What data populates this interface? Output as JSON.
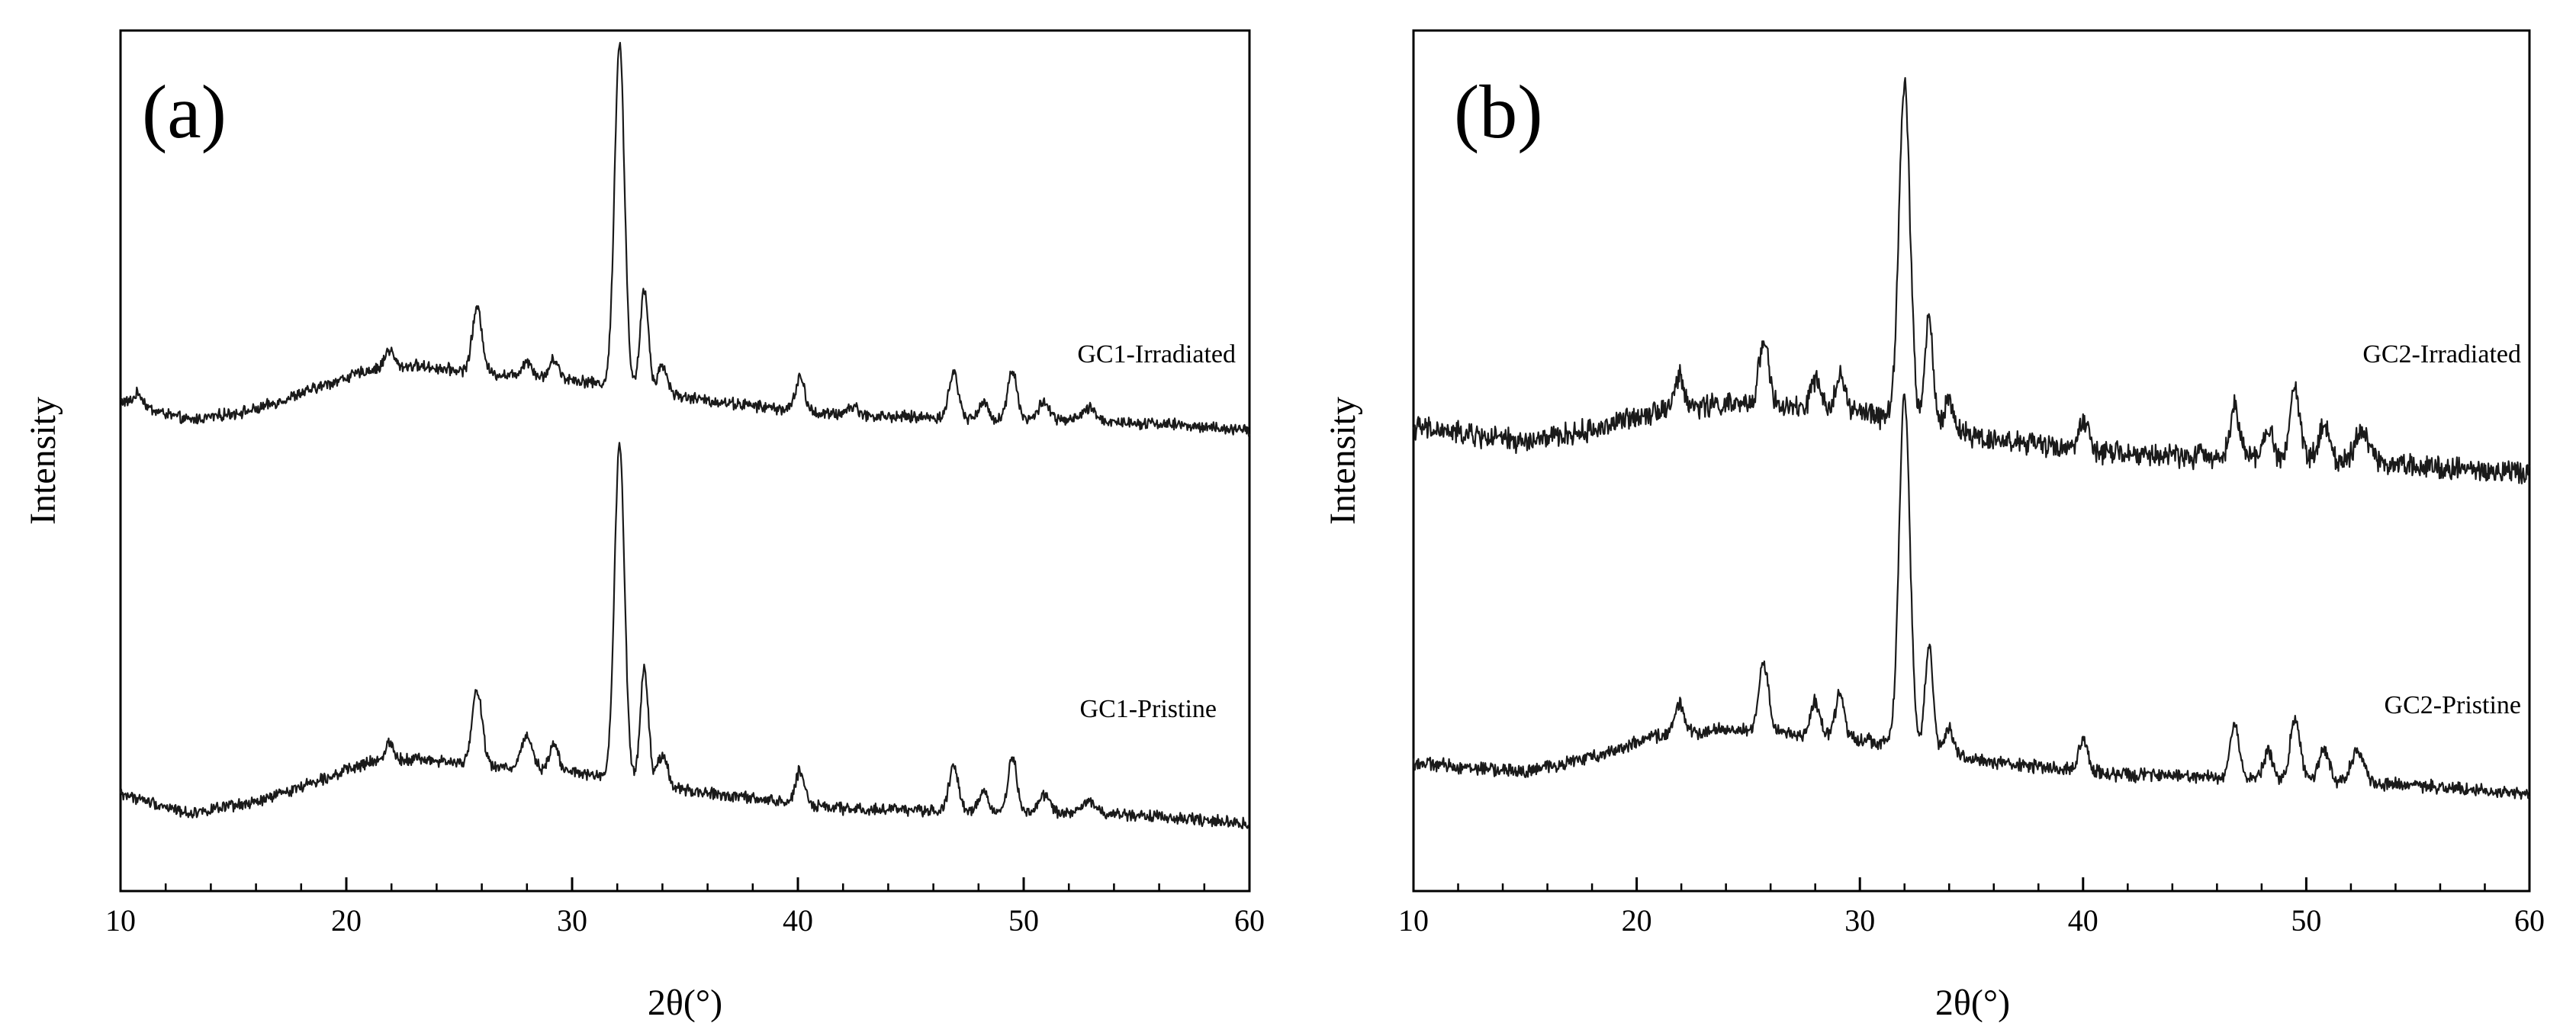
{
  "chart_data": [
    {
      "type": "line",
      "panel_label": "(a)",
      "xlabel": "2θ(°)",
      "ylabel": "Intensity",
      "xlim": [
        10,
        60
      ],
      "xticks": [
        10,
        20,
        30,
        40,
        50,
        60
      ],
      "xtick_labels": [
        "10",
        "20",
        "30",
        "40",
        "50",
        "60"
      ],
      "yticks": "none",
      "series": [
        {
          "name": "GC1-Irradiated",
          "noise": 0.03,
          "offset": 1.55,
          "baseline": [
            [
              10,
              0.2
            ],
            [
              13,
              0.07
            ],
            [
              16,
              0.14
            ],
            [
              19,
              0.3
            ],
            [
              21,
              0.4
            ],
            [
              23,
              0.43
            ],
            [
              26,
              0.38
            ],
            [
              30,
              0.34
            ],
            [
              36,
              0.2
            ],
            [
              42,
              0.1
            ],
            [
              50,
              0.08
            ],
            [
              56,
              0.05
            ],
            [
              60,
              0.0
            ]
          ],
          "peaks": [
            [
              10.8,
              0.08,
              0.2
            ],
            [
              21.9,
              0.12,
              0.2
            ],
            [
              25.8,
              0.42,
              0.22
            ],
            [
              28.0,
              0.1,
              0.22
            ],
            [
              29.2,
              0.12,
              0.2
            ],
            [
              32.1,
              2.25,
              0.22
            ],
            [
              33.2,
              0.66,
              0.18
            ],
            [
              34.0,
              0.18,
              0.22
            ],
            [
              40.1,
              0.22,
              0.2
            ],
            [
              42.4,
              0.06,
              0.3
            ],
            [
              46.9,
              0.3,
              0.2
            ],
            [
              48.2,
              0.1,
              0.2
            ],
            [
              49.5,
              0.32,
              0.2
            ],
            [
              50.9,
              0.12,
              0.22
            ],
            [
              52.9,
              0.08,
              0.3
            ]
          ]
        },
        {
          "name": "GC1-Pristine",
          "noise": 0.03,
          "offset": 0.0,
          "baseline": [
            [
              10,
              0.2
            ],
            [
              13,
              0.07
            ],
            [
              16,
              0.14
            ],
            [
              19,
              0.3
            ],
            [
              21,
              0.4
            ],
            [
              23,
              0.43
            ],
            [
              26,
              0.38
            ],
            [
              30,
              0.34
            ],
            [
              36,
              0.2
            ],
            [
              42,
              0.1
            ],
            [
              50,
              0.08
            ],
            [
              56,
              0.05
            ],
            [
              60,
              0.0
            ]
          ],
          "peaks": [
            [
              21.9,
              0.12,
              0.2
            ],
            [
              25.8,
              0.5,
              0.22
            ],
            [
              28.0,
              0.22,
              0.25
            ],
            [
              29.2,
              0.18,
              0.2
            ],
            [
              32.1,
              2.2,
              0.22
            ],
            [
              33.2,
              0.75,
              0.18
            ],
            [
              34.0,
              0.2,
              0.22
            ],
            [
              40.1,
              0.22,
              0.2
            ],
            [
              46.9,
              0.3,
              0.2
            ],
            [
              48.2,
              0.12,
              0.2
            ],
            [
              49.5,
              0.35,
              0.2
            ],
            [
              50.9,
              0.12,
              0.22
            ],
            [
              52.9,
              0.08,
              0.3
            ]
          ]
        }
      ]
    },
    {
      "type": "line",
      "panel_label": "(b)",
      "xlabel": "2θ(°)",
      "ylabel": "Intensity",
      "xlim": [
        10,
        60
      ],
      "xticks": [
        10,
        20,
        30,
        40,
        50,
        60
      ],
      "xtick_labels": [
        "10",
        "20",
        "30",
        "40",
        "50",
        "60"
      ],
      "yticks": "none",
      "series": [
        {
          "name": "GC2-Irradiated",
          "noise": 0.06,
          "offset": 1.55,
          "baseline": [
            [
              10,
              0.3
            ],
            [
              15,
              0.2
            ],
            [
              18,
              0.28
            ],
            [
              21,
              0.42
            ],
            [
              24,
              0.45
            ],
            [
              30,
              0.4
            ],
            [
              36,
              0.22
            ],
            [
              42,
              0.12
            ],
            [
              50,
              0.1
            ],
            [
              55,
              0.05
            ],
            [
              60,
              0.0
            ]
          ],
          "peaks": [
            [
              21.9,
              0.2,
              0.2
            ],
            [
              25.7,
              0.45,
              0.22
            ],
            [
              28.0,
              0.2,
              0.2
            ],
            [
              29.1,
              0.25,
              0.2
            ],
            [
              32.0,
              2.2,
              0.25
            ],
            [
              33.1,
              0.72,
              0.18
            ],
            [
              34.0,
              0.2,
              0.2
            ],
            [
              40.0,
              0.2,
              0.2
            ],
            [
              46.8,
              0.35,
              0.2
            ],
            [
              48.3,
              0.18,
              0.2
            ],
            [
              49.5,
              0.45,
              0.22
            ],
            [
              50.8,
              0.22,
              0.22
            ],
            [
              52.5,
              0.22,
              0.3
            ]
          ]
        },
        {
          "name": "GC2-Pristine",
          "noise": 0.035,
          "offset": 0.0,
          "baseline": [
            [
              10,
              0.2
            ],
            [
              15,
              0.14
            ],
            [
              18,
              0.24
            ],
            [
              21,
              0.38
            ],
            [
              24,
              0.42
            ],
            [
              30,
              0.36
            ],
            [
              36,
              0.2
            ],
            [
              42,
              0.12
            ],
            [
              50,
              0.09
            ],
            [
              55,
              0.05
            ],
            [
              60,
              0.0
            ]
          ],
          "peaks": [
            [
              21.9,
              0.2,
              0.2
            ],
            [
              25.7,
              0.45,
              0.22
            ],
            [
              28.0,
              0.22,
              0.2
            ],
            [
              29.1,
              0.28,
              0.2
            ],
            [
              32.0,
              2.3,
              0.24
            ],
            [
              33.1,
              0.7,
              0.18
            ],
            [
              34.0,
              0.18,
              0.2
            ],
            [
              40.0,
              0.22,
              0.2
            ],
            [
              46.8,
              0.35,
              0.2
            ],
            [
              48.3,
              0.18,
              0.2
            ],
            [
              49.5,
              0.4,
              0.22
            ],
            [
              50.8,
              0.2,
              0.22
            ],
            [
              52.3,
              0.2,
              0.3
            ]
          ]
        }
      ]
    }
  ]
}
